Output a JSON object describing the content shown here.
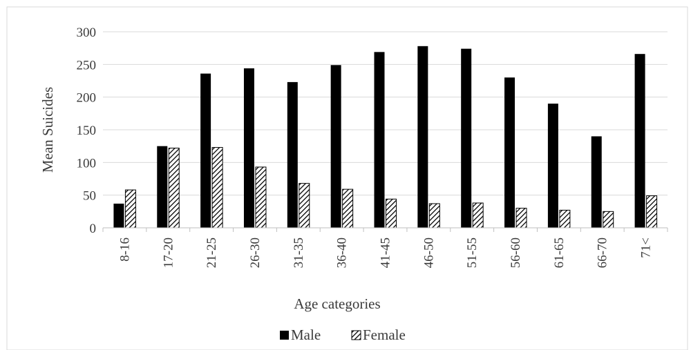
{
  "chart_data": {
    "type": "bar",
    "title": "",
    "xlabel": "Age categories",
    "ylabel": "Mean Suicides",
    "ylim": [
      0,
      300
    ],
    "yticks": [
      0,
      50,
      100,
      150,
      200,
      250,
      300
    ],
    "grid": true,
    "legend_position": "bottom",
    "categories": [
      "8-16",
      "17-20",
      "21-25",
      "26-30",
      "31-35",
      "36-40",
      "41-45",
      "46-50",
      "51-55",
      "56-60",
      "61-65",
      "66-70",
      "71<"
    ],
    "series": [
      {
        "name": "Male",
        "color": "#000000",
        "pattern": "solid",
        "values": [
          37,
          125,
          236,
          244,
          223,
          249,
          269,
          278,
          274,
          230,
          190,
          140,
          266
        ]
      },
      {
        "name": "Female",
        "color": "#000000",
        "pattern": "diagonal-hatch",
        "values": [
          58,
          122,
          123,
          93,
          68,
          59,
          44,
          37,
          38,
          30,
          27,
          25,
          49
        ]
      }
    ]
  }
}
